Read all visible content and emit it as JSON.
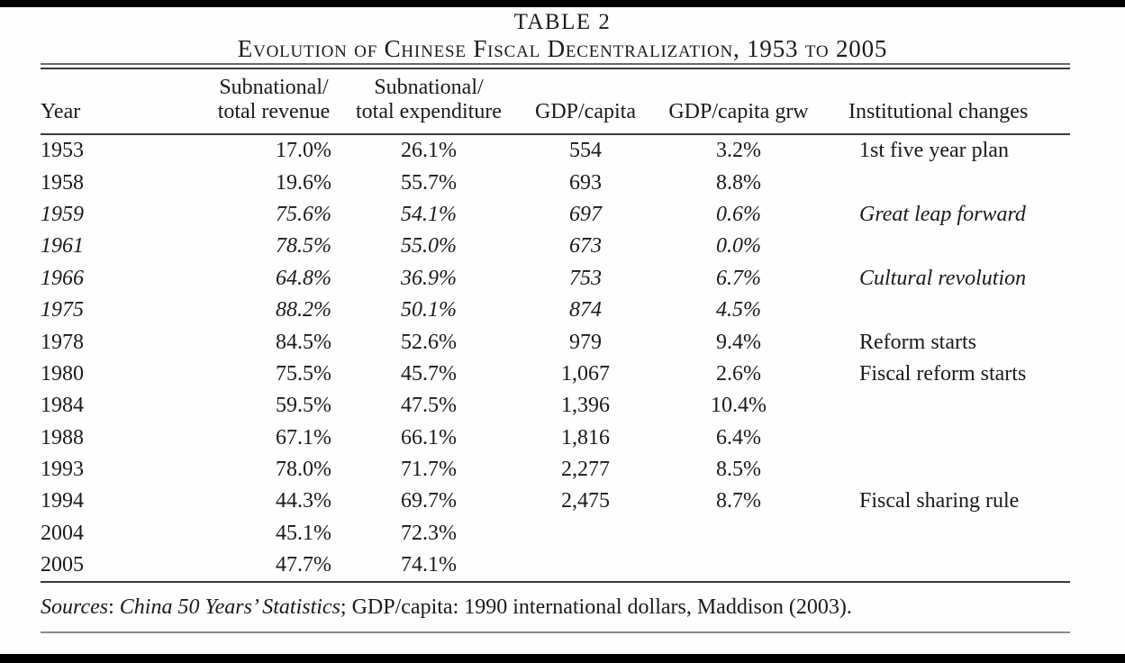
{
  "header": {
    "table_label": "TABLE 2",
    "table_title": "Evolution of Chinese Fiscal Decentralization, 1953 to 2005"
  },
  "table": {
    "columns": [
      {
        "key": "year",
        "label": "Year"
      },
      {
        "key": "revenue",
        "label": "Subnational/\ntotal revenue"
      },
      {
        "key": "expenditure",
        "label": "Subnational/\ntotal expenditure"
      },
      {
        "key": "gdp_capita",
        "label": "GDP/capita"
      },
      {
        "key": "gdp_growth",
        "label": "GDP/capita grw"
      },
      {
        "key": "institutional",
        "label": "Institutional changes"
      }
    ],
    "rows": [
      {
        "year": "1953",
        "revenue": "17.0%",
        "expenditure": "26.1%",
        "gdp_capita": "554",
        "gdp_growth": "3.2%",
        "institutional": "1st five year plan",
        "italic": false
      },
      {
        "year": "1958",
        "revenue": "19.6%",
        "expenditure": "55.7%",
        "gdp_capita": "693",
        "gdp_growth": "8.8%",
        "institutional": "",
        "italic": false
      },
      {
        "year": "1959",
        "revenue": "75.6%",
        "expenditure": "54.1%",
        "gdp_capita": "697",
        "gdp_growth": "0.6%",
        "institutional": "Great leap forward",
        "italic": true
      },
      {
        "year": "1961",
        "revenue": "78.5%",
        "expenditure": "55.0%",
        "gdp_capita": "673",
        "gdp_growth": "0.0%",
        "institutional": "",
        "italic": true
      },
      {
        "year": "1966",
        "revenue": "64.8%",
        "expenditure": "36.9%",
        "gdp_capita": "753",
        "gdp_growth": "6.7%",
        "institutional": "Cultural revolution",
        "italic": true
      },
      {
        "year": "1975",
        "revenue": "88.2%",
        "expenditure": "50.1%",
        "gdp_capita": "874",
        "gdp_growth": "4.5%",
        "institutional": "",
        "italic": true
      },
      {
        "year": "1978",
        "revenue": "84.5%",
        "expenditure": "52.6%",
        "gdp_capita": "979",
        "gdp_growth": "9.4%",
        "institutional": "Reform starts",
        "italic": false
      },
      {
        "year": "1980",
        "revenue": "75.5%",
        "expenditure": "45.7%",
        "gdp_capita": "1,067",
        "gdp_growth": "2.6%",
        "institutional": "Fiscal reform starts",
        "italic": false
      },
      {
        "year": "1984",
        "revenue": "59.5%",
        "expenditure": "47.5%",
        "gdp_capita": "1,396",
        "gdp_growth": "10.4%",
        "institutional": "",
        "italic": false
      },
      {
        "year": "1988",
        "revenue": "67.1%",
        "expenditure": "66.1%",
        "gdp_capita": "1,816",
        "gdp_growth": "6.4%",
        "institutional": "",
        "italic": false
      },
      {
        "year": "1993",
        "revenue": "78.0%",
        "expenditure": "71.7%",
        "gdp_capita": "2,277",
        "gdp_growth": "8.5%",
        "institutional": "",
        "italic": false
      },
      {
        "year": "1994",
        "revenue": "44.3%",
        "expenditure": "69.7%",
        "gdp_capita": "2,475",
        "gdp_growth": "8.7%",
        "institutional": "Fiscal sharing rule",
        "italic": false
      },
      {
        "year": "2004",
        "revenue": "45.1%",
        "expenditure": "72.3%",
        "gdp_capita": "",
        "gdp_growth": "",
        "institutional": "",
        "italic": false
      },
      {
        "year": "2005",
        "revenue": "47.7%",
        "expenditure": "74.1%",
        "gdp_capita": "",
        "gdp_growth": "",
        "institutional": "",
        "italic": false
      }
    ]
  },
  "footer": {
    "sources_label": "Sources",
    "sources_separator": ": ",
    "sources_work": "China 50 Years’ Statistics",
    "sources_rest": "; GDP/capita: 1990 international dollars, Maddison (2003)."
  },
  "colors": {
    "text": "#1a1a1a",
    "rule_dark": "#3a3a3a",
    "rule_light": "#8a8a8a",
    "scan_bar": "#000000",
    "background": "#fefefe"
  }
}
